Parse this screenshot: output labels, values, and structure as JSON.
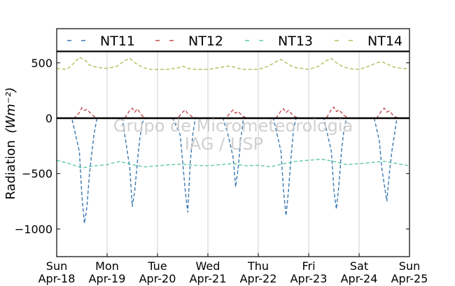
{
  "chart_data": {
    "type": "line",
    "ylabel": "Radiation",
    "ylabel_unit": "(Wm⁻²)",
    "ylim": [
      -1250,
      600
    ],
    "yticks": [
      500,
      0,
      -500,
      -1000
    ],
    "ytick_labels": [
      "500",
      "0",
      "−500",
      "−1000"
    ],
    "x_days": [
      {
        "day": "Sun",
        "date": "Apr-18"
      },
      {
        "day": "Mon",
        "date": "Apr-19"
      },
      {
        "day": "Tue",
        "date": "Apr-20"
      },
      {
        "day": "Wed",
        "date": "Apr-21"
      },
      {
        "day": "Thu",
        "date": "Apr-22"
      },
      {
        "day": "Fri",
        "date": "Apr-23"
      },
      {
        "day": "Sat",
        "date": "Apr-24"
      },
      {
        "day": "Sun",
        "date": "Apr-25"
      }
    ],
    "grid": "vertical",
    "legend_position": "top",
    "zero_line": true,
    "watermark": [
      "Grupo de Micrometeorologia",
      "IAG / USP"
    ],
    "series": [
      {
        "name": "NT11",
        "color": "#3a78b0",
        "style": "dashed",
        "x": [
          0.0,
          0.3,
          0.45,
          0.5,
          0.55,
          0.6,
          0.65,
          0.7,
          0.75,
          0.8,
          0.85,
          0.9,
          1.0,
          1.3,
          1.45,
          1.5,
          1.55,
          1.6,
          1.65,
          1.7,
          1.75,
          1.8,
          1.9,
          2.0,
          2.3,
          2.45,
          2.5,
          2.55,
          2.6,
          2.65,
          2.7,
          2.75,
          2.8,
          2.9,
          3.0,
          3.3,
          3.4,
          3.5,
          3.55,
          3.6,
          3.65,
          3.7,
          3.75,
          3.9,
          4.0,
          4.3,
          4.45,
          4.5,
          4.55,
          4.6,
          4.65,
          4.7,
          4.75,
          4.8,
          4.9,
          5.0,
          5.3,
          5.45,
          5.5,
          5.55,
          5.6,
          5.65,
          5.7,
          5.75,
          5.8,
          5.9,
          6.0,
          6.3,
          6.4,
          6.45,
          6.5,
          6.55,
          6.6,
          6.65,
          6.7,
          6.75,
          6.8,
          6.9,
          7.0
        ],
        "y": [
          0,
          0,
          -300,
          -700,
          -950,
          -800,
          -500,
          -300,
          -120,
          0,
          0,
          0,
          0,
          0,
          -450,
          -800,
          -650,
          -400,
          -180,
          -40,
          0,
          0,
          0,
          0,
          0,
          -150,
          -400,
          -650,
          -850,
          -400,
          -150,
          0,
          0,
          0,
          0,
          0,
          -150,
          -350,
          -620,
          -450,
          -200,
          -20,
          0,
          0,
          0,
          0,
          -300,
          -650,
          -880,
          -650,
          -350,
          -100,
          0,
          0,
          0,
          0,
          0,
          -300,
          -650,
          -820,
          -600,
          -300,
          -100,
          0,
          0,
          0,
          0,
          0,
          -200,
          -450,
          -600,
          -750,
          -500,
          -300,
          -150,
          0,
          0,
          0,
          0
        ]
      },
      {
        "name": "NT12",
        "color": "#c44e52",
        "style": "dashed",
        "x": [
          0.0,
          0.35,
          0.45,
          0.5,
          0.55,
          0.6,
          0.7,
          0.8,
          1.0,
          1.35,
          1.45,
          1.5,
          1.55,
          1.6,
          1.7,
          1.8,
          2.0,
          2.4,
          2.5,
          2.55,
          2.6,
          2.7,
          2.8,
          3.0,
          3.35,
          3.45,
          3.5,
          3.55,
          3.6,
          3.7,
          3.8,
          4.0,
          4.35,
          4.45,
          4.5,
          4.55,
          4.6,
          4.7,
          4.8,
          5.0,
          5.35,
          5.45,
          5.5,
          5.55,
          5.6,
          5.7,
          5.8,
          6.0,
          6.35,
          6.45,
          6.5,
          6.55,
          6.6,
          6.7,
          6.8,
          7.0
        ],
        "y": [
          0,
          0,
          50,
          95,
          70,
          80,
          30,
          0,
          0,
          0,
          70,
          90,
          55,
          85,
          20,
          0,
          0,
          0,
          55,
          75,
          40,
          10,
          0,
          0,
          0,
          50,
          75,
          45,
          60,
          15,
          0,
          0,
          0,
          65,
          85,
          50,
          70,
          20,
          0,
          0,
          0,
          80,
          100,
          60,
          75,
          25,
          0,
          0,
          0,
          70,
          90,
          55,
          65,
          15,
          0,
          0
        ]
      },
      {
        "name": "NT13",
        "color": "#5ec8a8",
        "style": "dashed",
        "x": [
          0.0,
          0.25,
          0.5,
          0.75,
          1.0,
          1.25,
          1.5,
          1.75,
          2.0,
          2.25,
          2.5,
          2.75,
          3.0,
          3.25,
          3.5,
          3.75,
          4.0,
          4.25,
          4.5,
          4.75,
          5.0,
          5.25,
          5.5,
          5.75,
          6.0,
          6.25,
          6.5,
          6.75,
          7.0
        ],
        "y": [
          -380,
          -410,
          -450,
          -430,
          -420,
          -390,
          -420,
          -440,
          -430,
          -420,
          -415,
          -425,
          -430,
          -420,
          -410,
          -430,
          -425,
          -440,
          -410,
          -390,
          -380,
          -370,
          -390,
          -420,
          -410,
          -400,
          -390,
          -410,
          -430
        ]
      },
      {
        "name": "NT14",
        "color": "#b8ba5a",
        "style": "dashed",
        "x": [
          0.0,
          0.2,
          0.35,
          0.45,
          0.55,
          0.65,
          0.8,
          1.0,
          1.2,
          1.35,
          1.45,
          1.55,
          1.7,
          1.85,
          2.0,
          2.2,
          2.4,
          2.5,
          2.6,
          2.75,
          3.0,
          3.2,
          3.4,
          3.5,
          3.6,
          3.75,
          4.0,
          4.2,
          4.35,
          4.45,
          4.55,
          4.7,
          4.85,
          5.0,
          5.2,
          5.35,
          5.45,
          5.55,
          5.7,
          5.85,
          6.0,
          6.2,
          6.35,
          6.45,
          6.55,
          6.7,
          6.85,
          7.0
        ],
        "y": [
          450,
          440,
          500,
          550,
          530,
          480,
          460,
          450,
          470,
          520,
          540,
          500,
          460,
          440,
          440,
          440,
          455,
          470,
          450,
          440,
          440,
          455,
          470,
          465,
          450,
          440,
          440,
          470,
          510,
          530,
          500,
          460,
          450,
          440,
          470,
          520,
          540,
          500,
          460,
          445,
          440,
          470,
          500,
          510,
          490,
          460,
          450,
          445
        ]
      }
    ]
  }
}
